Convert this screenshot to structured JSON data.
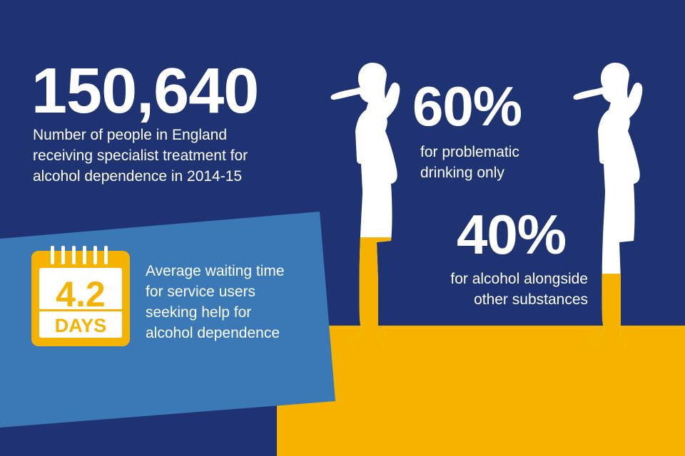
{
  "colors": {
    "navy": "#1f3373",
    "blue_panel": "#3a79b6",
    "yellow": "#f5b300",
    "white": "#ffffff"
  },
  "stat_people": {
    "number": "150,640",
    "description_lines": [
      "Number of people in England",
      "receiving specialist treatment for",
      "alcohol dependence in 2014-15"
    ]
  },
  "stat_waiting": {
    "icon": "calendar-icon",
    "value": "4.2",
    "unit": "DAYS",
    "description_lines": [
      "Average waiting time",
      "for service users",
      "seeking help for",
      "alcohol dependence"
    ]
  },
  "stat_problematic": {
    "percent": "60%",
    "fill_fraction": 0.6,
    "label_lines": [
      "for problematic",
      "drinking only"
    ]
  },
  "stat_substances": {
    "percent": "40%",
    "fill_fraction": 0.4,
    "label_lines": [
      "for alcohol alongside",
      "other substances"
    ]
  }
}
